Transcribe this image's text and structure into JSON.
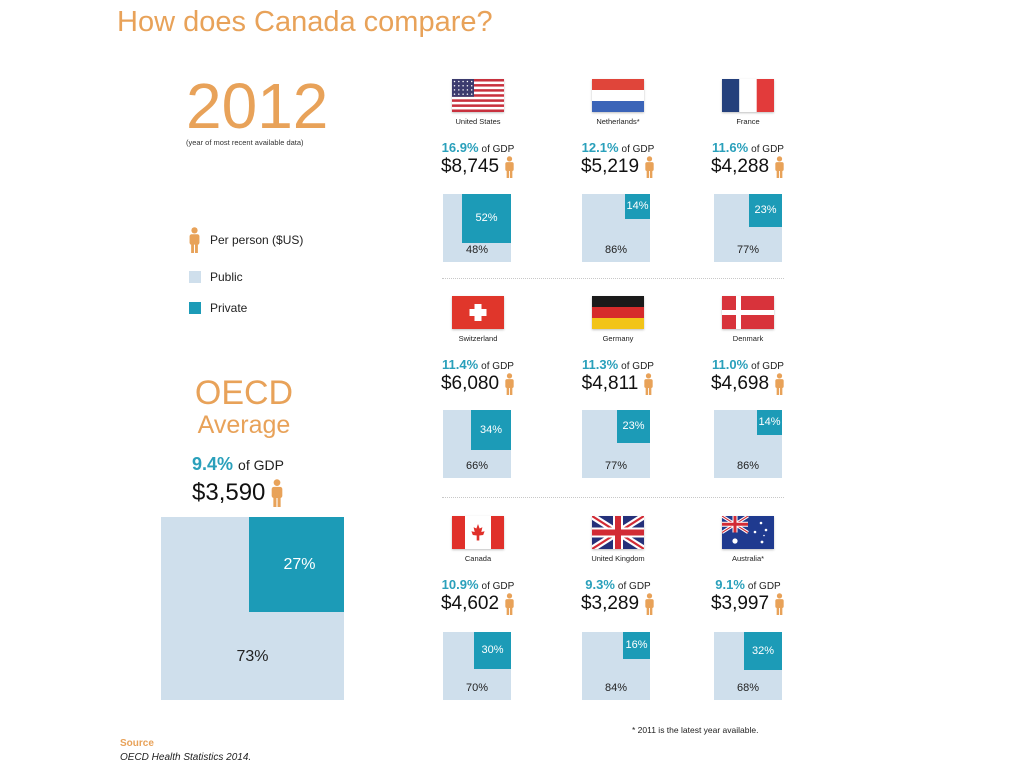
{
  "title": "How does Canada compare?",
  "year": "2012",
  "year_note": "(year of most recent available data)",
  "legend": {
    "per_person": "Per person ($US)",
    "public": "Public",
    "private": "Private"
  },
  "oecd": {
    "line1": "OECD",
    "line2": "Average",
    "gdp_pct": "9.4%",
    "gdp_suffix": "of GDP",
    "per_person": "$3,590",
    "private": "27%",
    "public": "73%"
  },
  "gdp_suffix": "of GDP",
  "countries": [
    {
      "name": "United States",
      "gdp_pct": "16.9%",
      "per_person": "$8,745",
      "private": "52%",
      "public": "48%"
    },
    {
      "name": "Netherlands*",
      "gdp_pct": "12.1%",
      "per_person": "$5,219",
      "private": "14%",
      "public": "86%"
    },
    {
      "name": "France",
      "gdp_pct": "11.6%",
      "per_person": "$4,288",
      "private": "23%",
      "public": "77%"
    },
    {
      "name": "Switzerland",
      "gdp_pct": "11.4%",
      "per_person": "$6,080",
      "private": "34%",
      "public": "66%"
    },
    {
      "name": "Germany",
      "gdp_pct": "11.3%",
      "per_person": "$4,811",
      "private": "23%",
      "public": "77%"
    },
    {
      "name": "Denmark",
      "gdp_pct": "11.0%",
      "per_person": "$4,698",
      "private": "14%",
      "public": "86%"
    },
    {
      "name": "Canada",
      "gdp_pct": "10.9%",
      "per_person": "$4,602",
      "private": "30%",
      "public": "70%"
    },
    {
      "name": "United Kingdom",
      "gdp_pct": "9.3%",
      "per_person": "$3,289",
      "private": "16%",
      "public": "84%"
    },
    {
      "name": "Australia*",
      "gdp_pct": "9.1%",
      "per_person": "$3,997",
      "private": "32%",
      "public": "68%"
    }
  ],
  "footnote": "* 2011 is the latest year available.",
  "source": {
    "label": "Source",
    "text": "OECD Health Statistics 2014."
  },
  "colors": {
    "orange": "#e8a259",
    "teal_text": "#2aa0bb",
    "private": "#1c9bb7",
    "public": "#cfdfec"
  },
  "chart_data": {
    "type": "bar",
    "title": "How does Canada compare?",
    "year": 2012,
    "categories": [
      "OECD Average",
      "United States",
      "Netherlands*",
      "France",
      "Switzerland",
      "Germany",
      "Denmark",
      "Canada",
      "United Kingdom",
      "Australia*"
    ],
    "series": [
      {
        "name": "of GDP",
        "values": [
          9.4,
          16.9,
          12.1,
          11.6,
          11.4,
          11.3,
          11.0,
          10.9,
          9.3,
          9.1
        ]
      },
      {
        "name": "Per person ($US)",
        "values": [
          3590,
          8745,
          5219,
          4288,
          6080,
          4811,
          4698,
          4602,
          3289,
          3997
        ]
      },
      {
        "name": "Public",
        "values": [
          73,
          48,
          86,
          77,
          66,
          77,
          86,
          70,
          84,
          68
        ]
      },
      {
        "name": "Private",
        "values": [
          27,
          52,
          14,
          23,
          34,
          23,
          14,
          30,
          16,
          32
        ]
      }
    ]
  }
}
